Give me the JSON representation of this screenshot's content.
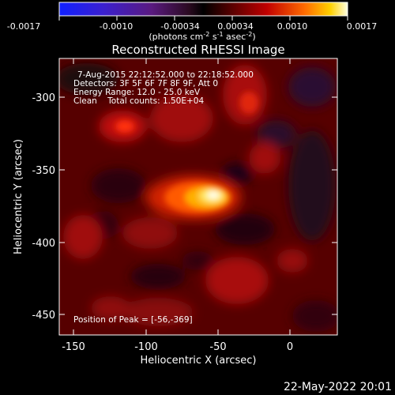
{
  "colorbar": {
    "ticks": [
      "-0.0017",
      "-0.0010",
      "-0.00034",
      "0.00034",
      "0.0010",
      "0.0017"
    ],
    "units_line": "(photons cm",
    "units_sup1": "-2",
    "units_mid": " s",
    "units_sup2": "-1",
    "units_tail": " asec",
    "units_sup3": "-2",
    "units_close": ")"
  },
  "plot": {
    "title": "Reconstructed RHESSI Image",
    "xlabel": "Heliocentric X (arcsec)",
    "ylabel": "Heliocentric Y (arcsec)",
    "x_ticks": [
      "-150",
      "-100",
      "-50",
      "0"
    ],
    "y_ticks": [
      "-300",
      "-350",
      "-400",
      "-450"
    ]
  },
  "info": {
    "line1": "7-Aug-2015 22:12:52.000 to 22:18:52.000",
    "line2": "Detectors: 3F 5F 6F 7F 8F 9F, Att 0",
    "line3": "Energy Range: 12.0 - 25.0 keV",
    "line4": "Clean    Total counts: 1.50E+04",
    "peak": "Position of Peak = [-56,-369]"
  },
  "footer": {
    "date": "22-May-2022 20:01"
  },
  "colors": {
    "background": "#000000",
    "axis": "#ffffff"
  }
}
